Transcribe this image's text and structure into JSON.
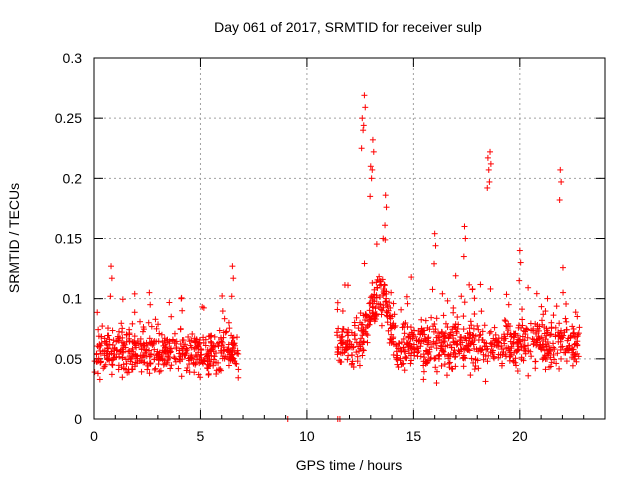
{
  "chart_data": {
    "type": "scatter",
    "title": "Day 061 of 2017, SRMTID for receiver sulp",
    "xlabel": "GPS time / hours",
    "ylabel": "SRMTID / TECUs",
    "xlim": [
      0,
      24
    ],
    "ylim": [
      0,
      0.3
    ],
    "xticks": [
      0,
      5,
      10,
      15,
      20
    ],
    "xtick_labels": [
      "0",
      "5",
      "10",
      "15",
      "20"
    ],
    "yticks": [
      0,
      0.05,
      0.1,
      0.15,
      0.2,
      0.25,
      0.3
    ],
    "ytick_labels": [
      "0",
      "0.05",
      "0.1",
      "0.15",
      "0.2",
      "0.25",
      "0.3"
    ],
    "grid": true,
    "marker": "+",
    "color": "#ff0000",
    "series": [
      {
        "name": "SRMTID",
        "segments": [
          {
            "x_start": 0.0,
            "x_end": 6.8,
            "baseline": 0.055,
            "spread": 0.03,
            "peaks": [
              [
                0.8,
                0.127
              ],
              [
                6.5,
                0.127
              ],
              [
                2.6,
                0.105
              ],
              [
                4.1,
                0.1
              ]
            ]
          },
          {
            "x_start": 11.4,
            "x_end": 22.8,
            "baseline": 0.062,
            "spread": 0.035,
            "peaks": [
              [
                12.7,
                0.269
              ],
              [
                12.6,
                0.25
              ],
              [
                13.1,
                0.232
              ],
              [
                13.0,
                0.21
              ],
              [
                13.7,
                0.186
              ],
              [
                18.6,
                0.222
              ],
              [
                18.5,
                0.217
              ],
              [
                21.9,
                0.207
              ],
              [
                16.0,
                0.154
              ],
              [
                17.4,
                0.16
              ],
              [
                20.0,
                0.14
              ]
            ]
          }
        ],
        "zero_points": [
          [
            9.1,
            0.0
          ],
          [
            11.45,
            0.0
          ],
          [
            11.55,
            0.0
          ]
        ]
      }
    ]
  }
}
